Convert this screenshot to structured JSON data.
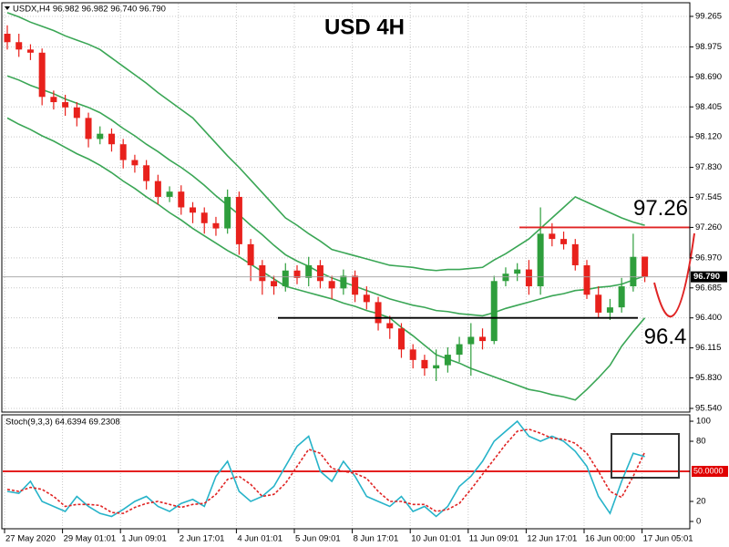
{
  "chart_data": [
    {
      "type": "candlestick",
      "title": "USD 4H",
      "header": "USDX,H4 96.982 96.982 96.740 96.790",
      "categories": [
        "27 May 2020",
        null,
        null,
        null,
        null,
        "29 May 01:01",
        null,
        null,
        null,
        null,
        "1 Jun 09:01",
        null,
        null,
        null,
        null,
        "2 Jun 17:01",
        null,
        null,
        null,
        null,
        "4 Jun 01:01",
        null,
        null,
        null,
        null,
        "5 Jun 09:01",
        null,
        null,
        null,
        null,
        "8 Jun 17:01",
        null,
        null,
        null,
        null,
        "10 Jun 01:01",
        null,
        null,
        null,
        null,
        "11 Jun 09:01",
        null,
        null,
        null,
        null,
        "12 Jun 17:01",
        null,
        null,
        null,
        null,
        "16 Jun 00:00",
        null,
        null,
        null,
        null,
        "17 Jun 05:01"
      ],
      "open": [
        99.1,
        99.02,
        98.95,
        98.92,
        98.5,
        98.45,
        98.4,
        98.3,
        98.1,
        98.15,
        98.05,
        97.9,
        97.85,
        97.7,
        97.55,
        97.6,
        97.45,
        97.4,
        97.3,
        97.25,
        97.55,
        97.1,
        96.9,
        96.75,
        96.7,
        96.85,
        96.78,
        96.9,
        96.75,
        96.68,
        96.8,
        96.62,
        96.55,
        96.35,
        96.3,
        96.1,
        96.0,
        95.92,
        95.95,
        96.05,
        96.15,
        96.22,
        96.18,
        96.75,
        96.82,
        96.86,
        96.7,
        97.2,
        97.15,
        97.1,
        96.9,
        96.62,
        96.45,
        96.5,
        96.7,
        96.982
      ],
      "high": [
        99.18,
        99.1,
        99.0,
        98.96,
        98.56,
        98.52,
        98.45,
        98.35,
        98.22,
        98.2,
        98.1,
        97.95,
        97.9,
        97.76,
        97.65,
        97.66,
        97.5,
        97.45,
        97.36,
        97.62,
        97.6,
        97.15,
        96.95,
        96.8,
        96.92,
        96.9,
        96.98,
        96.95,
        96.8,
        96.86,
        96.85,
        96.7,
        96.6,
        96.42,
        96.35,
        96.15,
        96.05,
        96.1,
        96.12,
        96.22,
        96.35,
        96.3,
        96.8,
        96.88,
        96.92,
        96.95,
        97.45,
        97.3,
        97.22,
        97.15,
        96.95,
        96.7,
        96.58,
        96.78,
        97.2,
        96.982
      ],
      "low": [
        98.95,
        98.88,
        98.85,
        98.42,
        98.38,
        98.32,
        98.22,
        98.02,
        98.05,
        97.98,
        97.82,
        97.78,
        97.62,
        97.48,
        97.5,
        97.38,
        97.3,
        97.2,
        97.18,
        97.2,
        97.0,
        96.75,
        96.62,
        96.62,
        96.65,
        96.72,
        96.7,
        96.68,
        96.58,
        96.62,
        96.55,
        96.48,
        96.28,
        96.2,
        96.02,
        95.92,
        95.85,
        95.8,
        95.88,
        95.98,
        95.85,
        96.1,
        96.15,
        96.7,
        96.75,
        96.62,
        96.62,
        97.08,
        97.05,
        96.85,
        96.58,
        96.4,
        96.38,
        96.45,
        96.65,
        96.74
      ],
      "close": [
        99.02,
        98.95,
        98.92,
        98.5,
        98.45,
        98.4,
        98.3,
        98.1,
        98.15,
        98.05,
        97.9,
        97.85,
        97.7,
        97.55,
        97.6,
        97.45,
        97.4,
        97.3,
        97.25,
        97.55,
        97.1,
        96.9,
        96.75,
        96.7,
        96.85,
        96.78,
        96.9,
        96.75,
        96.68,
        96.8,
        96.62,
        96.55,
        96.35,
        96.3,
        96.1,
        96.0,
        95.92,
        95.95,
        96.05,
        96.15,
        96.22,
        96.18,
        96.75,
        96.82,
        96.86,
        96.7,
        97.2,
        97.15,
        97.1,
        96.9,
        96.62,
        96.45,
        96.5,
        96.7,
        96.98,
        96.79
      ],
      "up_color": "#2e9e3c",
      "down_color": "#e8211c",
      "overlays": [
        {
          "color": "#3aa655",
          "values": [
            99.3,
            99.26,
            99.21,
            99.17,
            99.13,
            99.08,
            99.04,
            99.0,
            98.95,
            98.87,
            98.79,
            98.71,
            98.63,
            98.54,
            98.46,
            98.38,
            98.3,
            98.18,
            98.06,
            97.94,
            97.83,
            97.71,
            97.59,
            97.47,
            97.35,
            97.28,
            97.2,
            97.13,
            97.05,
            97.02,
            96.99,
            96.96,
            96.93,
            96.9,
            96.89,
            96.88,
            96.86,
            96.85,
            96.86,
            96.86,
            96.87,
            96.88,
            96.95,
            97.01,
            97.08,
            97.15,
            97.25,
            97.35,
            97.45,
            97.55,
            97.5,
            97.45,
            97.4,
            97.35,
            97.31,
            97.28
          ]
        },
        {
          "color": "#3aa655",
          "values": [
            98.7,
            98.66,
            98.61,
            98.57,
            98.53,
            98.48,
            98.44,
            98.4,
            98.35,
            98.28,
            98.2,
            98.13,
            98.05,
            97.98,
            97.9,
            97.83,
            97.75,
            97.66,
            97.56,
            97.47,
            97.38,
            97.28,
            97.19,
            97.09,
            97.0,
            96.94,
            96.89,
            96.83,
            96.78,
            96.74,
            96.7,
            96.66,
            96.62,
            96.58,
            96.55,
            96.52,
            96.5,
            96.47,
            96.46,
            96.44,
            96.43,
            96.42,
            96.45,
            96.49,
            96.52,
            96.55,
            96.58,
            96.61,
            96.63,
            96.66,
            96.67,
            96.69,
            96.7,
            96.72,
            96.76,
            96.8
          ]
        },
        {
          "color": "#3aa655",
          "values": [
            98.3,
            98.24,
            98.19,
            98.13,
            98.08,
            98.02,
            97.96,
            97.91,
            97.85,
            97.78,
            97.7,
            97.63,
            97.55,
            97.48,
            97.4,
            97.33,
            97.25,
            97.18,
            97.11,
            97.04,
            96.98,
            96.91,
            96.84,
            96.77,
            96.7,
            96.67,
            96.64,
            96.61,
            96.58,
            96.54,
            96.51,
            96.47,
            96.44,
            96.4,
            96.31,
            96.23,
            96.14,
            96.05,
            96.01,
            95.97,
            95.92,
            95.88,
            95.84,
            95.8,
            95.76,
            95.72,
            95.7,
            95.67,
            95.65,
            95.62,
            95.72,
            95.83,
            95.95,
            96.13,
            96.27,
            96.4
          ]
        }
      ],
      "ylim": [
        95.505,
        99.386
      ],
      "yticks": [
        99.265,
        98.975,
        {
          "value": 98.69,
          "label": "98.690"
        },
        98.405,
        {
          "value": 98.12,
          "label": "98.120"
        },
        {
          "value": 97.83,
          "label": "97.830"
        },
        97.545,
        {
          "value": 97.26,
          "label": "97.260"
        },
        {
          "value": 96.97,
          "label": "96.970"
        },
        96.685,
        {
          "value": 96.4,
          "label": "96.400"
        },
        96.115,
        {
          "value": 95.83,
          "label": "95.830"
        },
        {
          "value": 95.54,
          "label": "95.540"
        }
      ],
      "grid": true,
      "price_label": {
        "value": 96.79,
        "label": "96.790"
      },
      "annotations": [
        {
          "value": 97.26,
          "label": "97.26",
          "color": "#e02424"
        },
        {
          "value": 96.4,
          "label": "96.4",
          "color": "#000000"
        }
      ]
    },
    {
      "type": "line",
      "header": "Stoch(9,3,3) 64.6394 69.2308",
      "series": [
        {
          "color": "#26b3c9",
          "dashed": false,
          "values": [
            30,
            28,
            40,
            20,
            15,
            10,
            25,
            15,
            8,
            5,
            12,
            20,
            25,
            15,
            10,
            18,
            22,
            15,
            45,
            60,
            30,
            20,
            25,
            35,
            55,
            75,
            85,
            50,
            40,
            60,
            45,
            25,
            20,
            15,
            25,
            10,
            15,
            5,
            15,
            35,
            45,
            60,
            80,
            90,
            100,
            85,
            80,
            85,
            80,
            70,
            55,
            25,
            8,
            40,
            68,
            64.6394
          ]
        },
        {
          "color": "#e02424",
          "dashed": true,
          "values": [
            32,
            30,
            34,
            32,
            25,
            15,
            17,
            17,
            16,
            9,
            8,
            14,
            18,
            20,
            17,
            14,
            17,
            18,
            27,
            42,
            45,
            37,
            25,
            27,
            38,
            55,
            72,
            68,
            53,
            50,
            48,
            43,
            30,
            20,
            20,
            17,
            17,
            10,
            12,
            18,
            32,
            47,
            62,
            77,
            90,
            92,
            88,
            83,
            82,
            78,
            68,
            50,
            30,
            24,
            45,
            69.2308
          ]
        }
      ],
      "ylim": [
        -7.3,
        106.4
      ],
      "yticks": [
        100,
        80,
        20,
        0
      ],
      "level": {
        "value": 50,
        "label": "50.0000",
        "color": "#e00000"
      }
    }
  ]
}
